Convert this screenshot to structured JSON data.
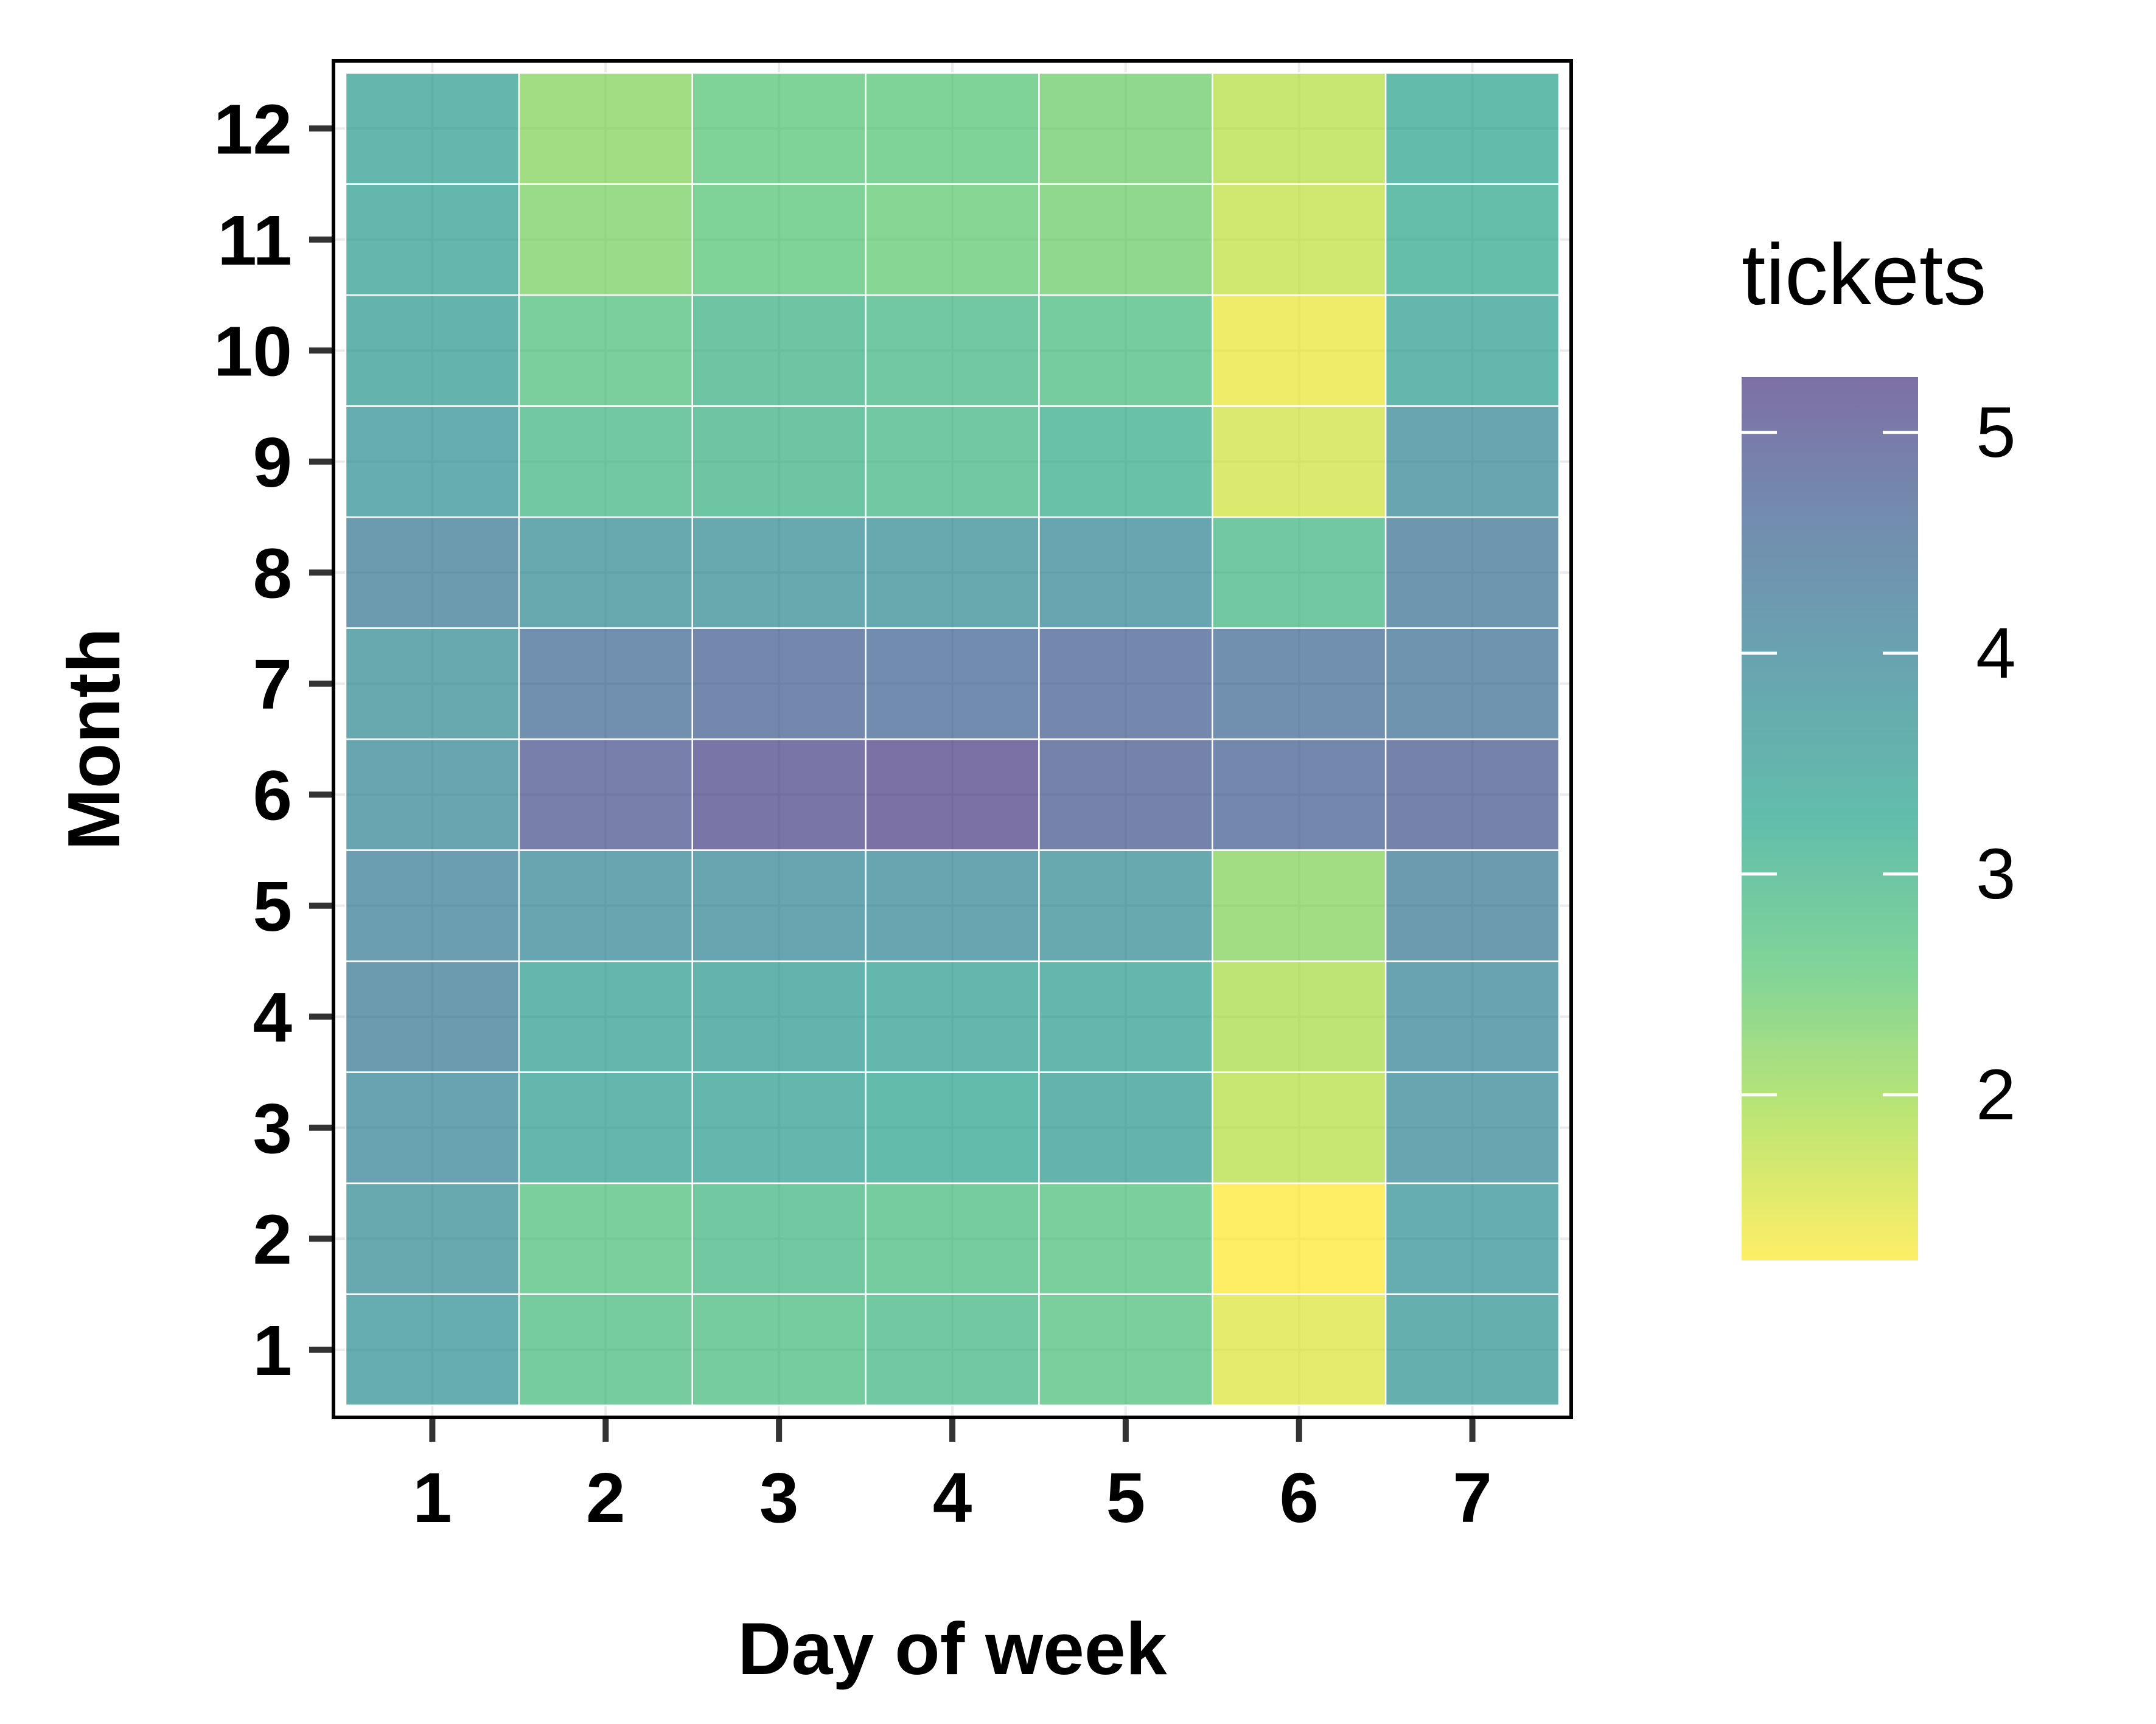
{
  "chart_data": {
    "type": "heatmap",
    "title": "",
    "xlabel": "Day of week",
    "ylabel": "Month",
    "x": [
      1,
      2,
      3,
      4,
      5,
      6,
      7
    ],
    "y": [
      1,
      2,
      3,
      4,
      5,
      6,
      7,
      8,
      9,
      10,
      11,
      12
    ],
    "x_tick_labels": [
      "1",
      "2",
      "3",
      "4",
      "5",
      "6",
      "7"
    ],
    "y_tick_labels": [
      "1",
      "2",
      "3",
      "4",
      "5",
      "6",
      "7",
      "8",
      "9",
      "10",
      "11",
      "12"
    ],
    "values": [
      [
        3.7,
        2.8,
        2.8,
        2.9,
        2.7,
        1.5,
        3.6
      ],
      [
        3.8,
        2.7,
        2.9,
        2.8,
        2.7,
        1.2,
        3.7
      ],
      [
        4.0,
        3.4,
        3.4,
        3.3,
        3.5,
        1.8,
        3.9
      ],
      [
        4.2,
        3.4,
        3.5,
        3.4,
        3.4,
        1.9,
        4.0
      ],
      [
        4.1,
        3.9,
        3.9,
        3.9,
        3.8,
        2.2,
        4.2
      ],
      [
        3.9,
        4.9,
        5.1,
        5.2,
        4.8,
        4.7,
        4.8
      ],
      [
        3.8,
        4.5,
        4.7,
        4.6,
        4.7,
        4.5,
        4.4
      ],
      [
        4.2,
        3.8,
        3.8,
        3.8,
        3.9,
        2.9,
        4.3
      ],
      [
        3.7,
        2.9,
        3.0,
        2.9,
        3.1,
        1.6,
        3.9
      ],
      [
        3.5,
        2.7,
        3.0,
        2.9,
        2.8,
        1.4,
        3.4
      ],
      [
        3.4,
        2.3,
        2.6,
        2.5,
        2.4,
        1.7,
        3.2
      ],
      [
        3.4,
        2.2,
        2.6,
        2.6,
        2.4,
        1.8,
        3.3
      ]
    ],
    "xlim": [
      0.5,
      7.5
    ],
    "ylim": [
      0.5,
      12.5
    ],
    "grid": true,
    "legend": {
      "title": "tickets",
      "placement": "right",
      "breaks": [
        2,
        3,
        4,
        5
      ],
      "break_labels": [
        "2",
        "3",
        "4",
        "5"
      ],
      "range": [
        1.25,
        5.25
      ]
    },
    "colors": {
      "low": "#fde725",
      "mid_low": "#a0da39",
      "mid": "#4ac16d",
      "mid_high": "#1fa187",
      "high_mid": "#277f8e",
      "high": "#365c8d",
      "top": "#46327e",
      "fill_opacity": 0.7,
      "tile_border": "#ffffff",
      "panel_border": "#000000",
      "tick": "#333333",
      "grid": "#ebebeb"
    }
  }
}
